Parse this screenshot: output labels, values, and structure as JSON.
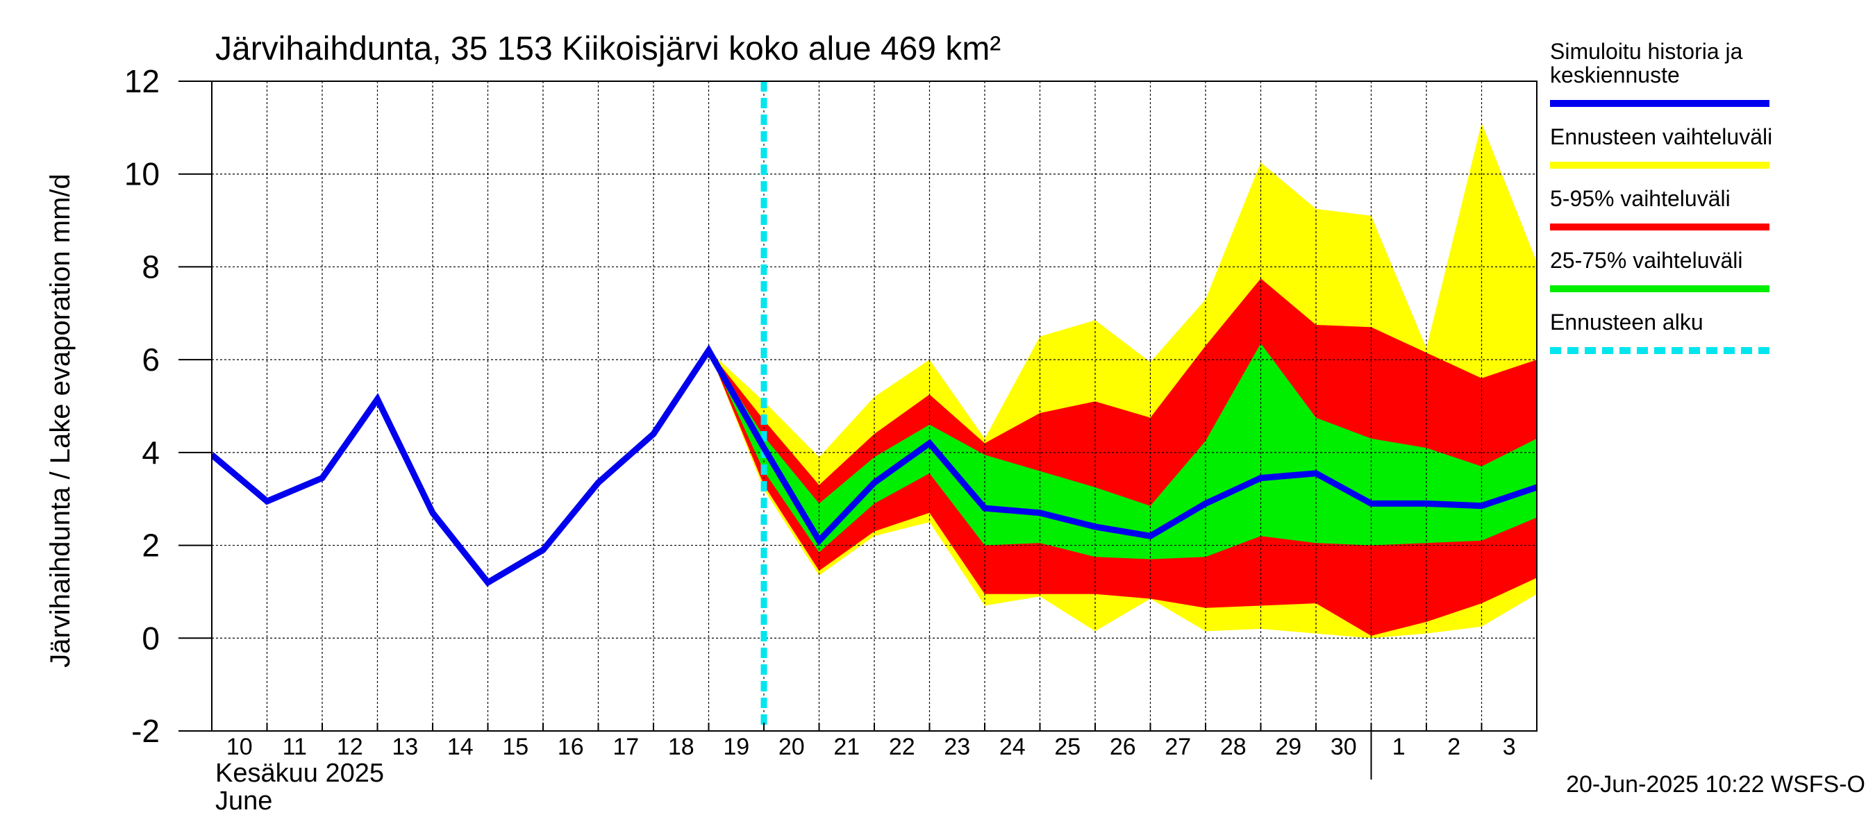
{
  "chart_data": {
    "type": "area",
    "title": "Järvihaihdunta, 35 153 Kiikoisjärvi koko alue 469 km²",
    "ylabel": "Järvihaihdunta / Lake evaporation   mm/d",
    "ylim": [
      -2,
      12
    ],
    "yticks": [
      -2,
      0,
      2,
      4,
      6,
      8,
      10,
      12
    ],
    "grid": true,
    "legend_position": "right",
    "x": [
      "2025-06-10",
      "2025-06-11",
      "2025-06-12",
      "2025-06-13",
      "2025-06-14",
      "2025-06-15",
      "2025-06-16",
      "2025-06-17",
      "2025-06-18",
      "2025-06-19",
      "2025-06-20",
      "2025-06-21",
      "2025-06-22",
      "2025-06-23",
      "2025-06-24",
      "2025-06-25",
      "2025-06-26",
      "2025-06-27",
      "2025-06-28",
      "2025-06-29",
      "2025-06-30",
      "2025-07-01",
      "2025-07-02",
      "2025-07-03",
      "2025-07-04"
    ],
    "x_tick_labels": [
      "10",
      "11",
      "12",
      "13",
      "14",
      "15",
      "16",
      "17",
      "18",
      "19",
      "20",
      "21",
      "22",
      "23",
      "24",
      "25",
      "26",
      "27",
      "28",
      "29",
      "30",
      "1",
      "2",
      "3"
    ],
    "x_month_labels": [
      "Kesäkuu   2025",
      "June"
    ],
    "forecast_start": "2025-06-20",
    "series": [
      {
        "name": "Simuloitu historia ja keskiennuste",
        "color": "#0000ee",
        "x": [
          "2025-06-10",
          "2025-06-11",
          "2025-06-12",
          "2025-06-13",
          "2025-06-14",
          "2025-06-15",
          "2025-06-16",
          "2025-06-17",
          "2025-06-18",
          "2025-06-19",
          "2025-06-20",
          "2025-06-21",
          "2025-06-22",
          "2025-06-23",
          "2025-06-24",
          "2025-06-25",
          "2025-06-26",
          "2025-06-27",
          "2025-06-28",
          "2025-06-29",
          "2025-06-30",
          "2025-07-01",
          "2025-07-02",
          "2025-07-03",
          "2025-07-04"
        ],
        "values": [
          3.95,
          2.95,
          3.45,
          5.15,
          2.7,
          1.2,
          1.9,
          3.35,
          4.4,
          6.2,
          4.1,
          2.1,
          3.35,
          4.2,
          2.8,
          2.7,
          2.4,
          2.2,
          2.9,
          3.45,
          3.55,
          2.9,
          2.9,
          2.85,
          3.25
        ]
      }
    ],
    "bands": [
      {
        "name": "Ennusteen vaihteluväli",
        "color": "#ffff00",
        "x": [
          "2025-06-19",
          "2025-06-20",
          "2025-06-21",
          "2025-06-22",
          "2025-06-23",
          "2025-06-24",
          "2025-06-25",
          "2025-06-26",
          "2025-06-27",
          "2025-06-28",
          "2025-06-29",
          "2025-06-30",
          "2025-07-01",
          "2025-07-02",
          "2025-07-03",
          "2025-07-04"
        ],
        "upper": [
          6.2,
          5.1,
          3.9,
          5.2,
          6.0,
          4.3,
          6.5,
          6.85,
          5.95,
          7.3,
          10.25,
          9.25,
          9.1,
          6.25,
          11.1,
          8.1
        ],
        "lower": [
          6.2,
          3.2,
          1.35,
          2.2,
          2.5,
          0.7,
          0.9,
          0.15,
          0.85,
          0.15,
          0.2,
          0.1,
          0.0,
          0.1,
          0.25,
          0.95
        ]
      },
      {
        "name": "5-95% vaihteluväli",
        "color": "#ff0000",
        "x": [
          "2025-06-19",
          "2025-06-20",
          "2025-06-21",
          "2025-06-22",
          "2025-06-23",
          "2025-06-24",
          "2025-06-25",
          "2025-06-26",
          "2025-06-27",
          "2025-06-28",
          "2025-06-29",
          "2025-06-30",
          "2025-07-01",
          "2025-07-02",
          "2025-07-03",
          "2025-07-04"
        ],
        "upper": [
          6.2,
          4.7,
          3.3,
          4.4,
          5.25,
          4.2,
          4.85,
          5.1,
          4.75,
          6.3,
          7.75,
          6.75,
          6.7,
          6.15,
          5.6,
          6.0
        ],
        "lower": [
          6.2,
          3.3,
          1.45,
          2.3,
          2.7,
          0.95,
          0.95,
          0.95,
          0.85,
          0.65,
          0.7,
          0.75,
          0.05,
          0.35,
          0.75,
          1.3
        ]
      },
      {
        "name": "25-75% vaihteluväli",
        "color": "#00ee00",
        "x": [
          "2025-06-19",
          "2025-06-20",
          "2025-06-21",
          "2025-06-22",
          "2025-06-23",
          "2025-06-24",
          "2025-06-25",
          "2025-06-26",
          "2025-06-27",
          "2025-06-28",
          "2025-06-29",
          "2025-06-30",
          "2025-07-01",
          "2025-07-02",
          "2025-07-03",
          "2025-07-04"
        ],
        "upper": [
          6.2,
          4.35,
          2.9,
          3.9,
          4.6,
          3.95,
          3.6,
          3.25,
          2.85,
          4.25,
          6.35,
          4.75,
          4.3,
          4.1,
          3.7,
          4.3
        ],
        "lower": [
          6.2,
          3.6,
          1.85,
          2.9,
          3.55,
          2.0,
          2.05,
          1.75,
          1.7,
          1.75,
          2.2,
          2.05,
          2.0,
          2.05,
          2.1,
          2.6
        ]
      }
    ],
    "legend": [
      {
        "label_lines": [
          "Simuloitu historia ja",
          "keskiennuste"
        ],
        "color": "#0000ee",
        "style": "solid"
      },
      {
        "label_lines": [
          "Ennusteen vaihteluväli"
        ],
        "color": "#ffff00",
        "style": "solid"
      },
      {
        "label_lines": [
          "5-95% vaihteluväli"
        ],
        "color": "#ff0000",
        "style": "solid"
      },
      {
        "label_lines": [
          "25-75% vaihteluväli"
        ],
        "color": "#00ee00",
        "style": "solid"
      },
      {
        "label_lines": [
          "Ennusteen alku"
        ],
        "color": "#00e5ee",
        "style": "dashed"
      }
    ],
    "footer": "20-Jun-2025 10:22 WSFS-O"
  }
}
